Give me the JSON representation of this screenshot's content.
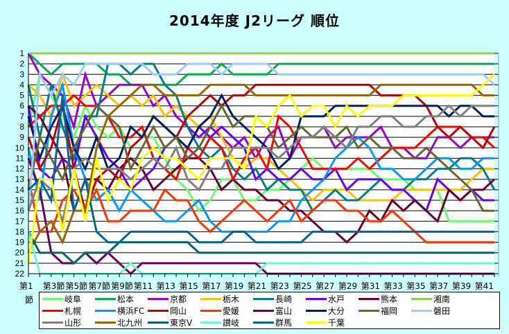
{
  "chart_data": {
    "type": "line",
    "title": "2014年度 J2リーグ 順位",
    "xlabel": "",
    "ylabel": "",
    "ylim": [
      1,
      22
    ],
    "y_inverted": true,
    "y_ticks": [
      1,
      2,
      3,
      4,
      5,
      6,
      7,
      8,
      9,
      10,
      11,
      12,
      13,
      14,
      15,
      16,
      17,
      18,
      19,
      20,
      21,
      22
    ],
    "x_tick_labels": [
      "第1節",
      "第3節",
      "第5節",
      "第7節",
      "第9節",
      "第11",
      "第13",
      "第15",
      "第17",
      "第19",
      "第21",
      "第23",
      "第25",
      "第27",
      "第29",
      "第31",
      "第33",
      "第35",
      "第37",
      "第39",
      "第41"
    ],
    "x_tick_label_bottom": [
      "節",
      "節",
      "節"
    ],
    "x": [
      1,
      2,
      3,
      4,
      5,
      6,
      7,
      8,
      9,
      10,
      11,
      12,
      13,
      14,
      15,
      16,
      17,
      18,
      19,
      20,
      21,
      22,
      23,
      24,
      25,
      26,
      27,
      28,
      29,
      30,
      31,
      32,
      33,
      34,
      35,
      36,
      37,
      38,
      39,
      40,
      41,
      42
    ],
    "grid": true,
    "legend_position": "bottom",
    "series": [
      {
        "name": "岐阜",
        "color": "#66ff66",
        "values": [
          8,
          3,
          5,
          7,
          9,
          6,
          8,
          9,
          8,
          10,
          9,
          9,
          11,
          13,
          14,
          16,
          15,
          13,
          13,
          15,
          15,
          14,
          14,
          13,
          12,
          11,
          12,
          12,
          12,
          12,
          12,
          13,
          13,
          13,
          14,
          14,
          14,
          17,
          17,
          17,
          17,
          17
        ]
      },
      {
        "name": "松本",
        "color": "#00b050",
        "values": [
          1,
          2,
          3,
          2,
          2,
          2,
          2,
          3,
          3,
          4,
          4,
          4,
          4,
          4,
          3,
          3,
          3,
          2,
          3,
          3,
          3,
          3,
          2,
          2,
          2,
          2,
          2,
          2,
          2,
          2,
          2,
          2,
          2,
          2,
          2,
          2,
          2,
          2,
          2,
          2,
          2,
          2
        ]
      },
      {
        "name": "京都",
        "color": "#9900cc",
        "values": [
          1,
          3,
          4,
          5,
          8,
          3,
          6,
          5,
          4,
          4,
          4,
          6,
          5,
          7,
          8,
          9,
          8,
          9,
          10,
          9,
          11,
          9,
          8,
          11,
          9,
          9,
          8,
          10,
          9,
          9,
          9,
          8,
          10,
          10,
          11,
          11,
          9,
          9,
          10,
          9,
          9,
          9
        ]
      },
      {
        "name": "栃木",
        "color": "#ffc000",
        "values": [
          4,
          5,
          7,
          3,
          6,
          5,
          4,
          5,
          6,
          5,
          6,
          5,
          7,
          6,
          7,
          8,
          7,
          9,
          11,
          12,
          11,
          11,
          12,
          13,
          14,
          15,
          14,
          14,
          14,
          15,
          15,
          15,
          15,
          14,
          14,
          14,
          14,
          14,
          14,
          13,
          12,
          12
        ]
      },
      {
        "name": "長崎",
        "color": "#008080",
        "values": [
          4,
          9,
          4,
          8,
          11,
          7,
          7,
          2,
          2,
          3,
          2,
          2,
          4,
          5,
          8,
          10,
          11,
          10,
          12,
          13,
          12,
          14,
          13,
          14,
          14,
          16,
          15,
          14,
          15,
          15,
          14,
          13,
          14,
          14,
          13,
          13,
          12,
          12,
          11,
          11,
          12,
          14
        ]
      },
      {
        "name": "水戸",
        "color": "#6600ff",
        "values": [
          6,
          12,
          13,
          11,
          12,
          7,
          9,
          11,
          12,
          14,
          13,
          12,
          10,
          9,
          10,
          8,
          9,
          8,
          9,
          10,
          13,
          12,
          13,
          13,
          12,
          13,
          13,
          12,
          14,
          13,
          13,
          13,
          14,
          14,
          15,
          16,
          13,
          14,
          15,
          14,
          15,
          15
        ]
      },
      {
        "name": "熊本",
        "color": "#660033",
        "values": [
          6,
          7,
          9,
          11,
          16,
          13,
          13,
          14,
          12,
          11,
          12,
          14,
          13,
          12,
          11,
          11,
          12,
          14,
          13,
          14,
          14,
          15,
          15,
          16,
          16,
          17,
          18,
          18,
          19,
          18,
          16,
          17,
          15,
          16,
          15,
          16,
          17,
          14,
          15,
          14,
          14,
          13
        ]
      },
      {
        "name": "湘南",
        "color": "#92d050",
        "values": [
          1,
          1,
          1,
          1,
          1,
          1,
          1,
          1,
          1,
          1,
          1,
          1,
          1,
          1,
          1,
          1,
          1,
          1,
          1,
          1,
          1,
          1,
          1,
          1,
          1,
          1,
          1,
          1,
          1,
          1,
          1,
          1,
          1,
          1,
          1,
          1,
          1,
          1,
          1,
          1,
          1,
          1
        ]
      },
      {
        "name": "札幌",
        "color": "#ff0000",
        "values": [
          8,
          7,
          6,
          6,
          5,
          6,
          6,
          7,
          9,
          9,
          8,
          11,
          12,
          13,
          10,
          11,
          9,
          10,
          13,
          11,
          10,
          12,
          7,
          8,
          10,
          12,
          12,
          12,
          12,
          11,
          12,
          11,
          10,
          10,
          10,
          9,
          8,
          8,
          8,
          9,
          9,
          10
        ]
      },
      {
        "name": "横浜FC",
        "color": "#0099ff",
        "values": [
          10,
          15,
          7,
          4,
          10,
          13,
          15,
          14,
          16,
          14,
          15,
          16,
          17,
          17,
          16,
          15,
          17,
          18,
          18,
          18,
          18,
          18,
          17,
          17,
          15,
          14,
          13,
          11,
          10,
          9,
          10,
          12,
          12,
          13,
          13,
          12,
          11,
          11,
          12,
          12,
          11,
          11
        ]
      },
      {
        "name": "岡山",
        "color": "#c00000",
        "values": [
          9,
          12,
          10,
          6,
          12,
          16,
          13,
          12,
          13,
          10,
          9,
          7,
          8,
          9,
          7,
          6,
          5,
          6,
          5,
          5,
          4,
          4,
          4,
          4,
          4,
          4,
          4,
          4,
          4,
          4,
          4,
          5,
          5,
          5,
          5,
          6,
          8,
          9,
          8,
          9,
          10,
          8
        ]
      },
      {
        "name": "愛媛",
        "color": "#ff3300",
        "values": [
          13,
          18,
          18,
          15,
          14,
          16,
          14,
          17,
          17,
          16,
          16,
          16,
          14,
          15,
          15,
          17,
          18,
          17,
          16,
          15,
          16,
          17,
          16,
          15,
          17,
          16,
          15,
          15,
          16,
          16,
          17,
          17,
          16,
          17,
          18,
          19,
          19,
          19,
          19,
          19,
          19,
          19
        ]
      },
      {
        "name": "富山",
        "color": "#660066",
        "values": [
          11,
          14,
          20,
          21,
          21,
          20,
          21,
          20,
          21,
          22,
          21,
          21,
          21,
          21,
          21,
          21,
          21,
          21,
          21,
          21,
          21,
          22,
          22,
          22,
          22,
          22,
          22,
          22,
          22,
          22,
          22,
          22,
          22,
          22,
          22,
          22,
          22,
          22,
          22,
          22,
          22,
          22
        ]
      },
      {
        "name": "大分",
        "color": "#002060",
        "values": [
          7,
          11,
          8,
          6,
          10,
          12,
          9,
          12,
          11,
          8,
          9,
          7,
          8,
          9,
          10,
          8,
          7,
          5,
          7,
          8,
          9,
          10,
          12,
          11,
          7,
          7,
          7,
          6,
          6,
          6,
          6,
          6,
          6,
          6,
          6,
          6,
          6,
          7,
          6,
          6,
          7,
          7
        ]
      },
      {
        "name": "福岡",
        "color": "#666633",
        "values": [
          14,
          9,
          11,
          13,
          10,
          8,
          6,
          7,
          8,
          12,
          10,
          8,
          10,
          9,
          11,
          10,
          8,
          6,
          8,
          7,
          7,
          8,
          10,
          9,
          8,
          9,
          9,
          9,
          8,
          10,
          9,
          10,
          10,
          11,
          11,
          10,
          11,
          12,
          13,
          14,
          16,
          16
        ]
      },
      {
        "name": "磐田",
        "color": "#99ccff",
        "values": [
          16,
          3,
          5,
          3,
          4,
          2,
          2,
          2,
          2,
          2,
          2,
          3,
          3,
          3,
          2,
          2,
          2,
          3,
          2,
          2,
          2,
          2,
          3,
          3,
          3,
          3,
          3,
          3,
          3,
          3,
          3,
          3,
          3,
          3,
          3,
          3,
          3,
          3,
          3,
          3,
          3,
          4
        ]
      },
      {
        "name": "山形",
        "color": "#808080",
        "values": [
          16,
          13,
          14,
          17,
          12,
          11,
          12,
          12,
          12,
          13,
          12,
          11,
          12,
          10,
          13,
          14,
          12,
          12,
          10,
          10,
          10,
          10,
          11,
          10,
          9,
          9,
          8,
          9,
          10,
          8,
          8,
          7,
          7,
          8,
          8,
          7,
          7,
          6,
          7,
          6,
          6,
          6
        ]
      },
      {
        "name": "北九州",
        "color": "#996600",
        "values": [
          20,
          18,
          17,
          19,
          16,
          16,
          10,
          7,
          6,
          5,
          4,
          4,
          5,
          5,
          5,
          5,
          4,
          4,
          4,
          4,
          5,
          5,
          5,
          5,
          5,
          5,
          5,
          5,
          5,
          5,
          5,
          4,
          4,
          4,
          4,
          4,
          4,
          4,
          4,
          4,
          5,
          5
        ]
      },
      {
        "name": "東京V",
        "color": "#006666",
        "values": [
          18,
          20,
          20,
          20,
          21,
          20,
          20,
          20,
          19,
          19,
          19,
          19,
          19,
          19,
          19,
          20,
          20,
          20,
          20,
          20,
          20,
          20,
          20,
          20,
          20,
          20,
          20,
          20,
          20,
          20,
          20,
          20,
          20,
          20,
          20,
          20,
          20,
          20,
          20,
          20,
          20,
          20
        ]
      },
      {
        "name": "讃岐",
        "color": "#66ffcc",
        "values": [
          18,
          22,
          22,
          22,
          22,
          22,
          22,
          22,
          22,
          21,
          22,
          22,
          22,
          22,
          22,
          22,
          22,
          22,
          22,
          22,
          22,
          21,
          21,
          21,
          21,
          21,
          21,
          21,
          21,
          21,
          21,
          21,
          21,
          21,
          21,
          21,
          21,
          21,
          21,
          21,
          21,
          21
        ]
      },
      {
        "name": "群馬",
        "color": "#006699",
        "values": [
          14,
          13,
          15,
          5,
          16,
          13,
          18,
          19,
          19,
          18,
          18,
          18,
          18,
          18,
          18,
          19,
          19,
          19,
          18,
          18,
          19,
          19,
          19,
          19,
          19,
          18,
          18,
          18,
          18,
          18,
          18,
          18,
          18,
          18,
          18,
          18,
          18,
          18,
          18,
          18,
          18,
          18
        ]
      },
      {
        "name": "千葉",
        "color": "#ffff00",
        "values": [
          21,
          13,
          13,
          18,
          12,
          17,
          11,
          15,
          13,
          14,
          11,
          10,
          11,
          11,
          12,
          13,
          11,
          11,
          11,
          12,
          7,
          8,
          6,
          5,
          7,
          6,
          6,
          8,
          6,
          7,
          6,
          6,
          6,
          5,
          5,
          5,
          5,
          5,
          5,
          5,
          4,
          3
        ]
      }
    ]
  },
  "legend": {
    "rows": [
      [
        "岐阜",
        "松本",
        "京都",
        "栃木",
        "長崎",
        "水戸",
        "熊本",
        "湘南"
      ],
      [
        "札幌",
        "横浜FC",
        "岡山",
        "愛媛",
        "富山",
        "大分",
        "福岡",
        "磐田"
      ],
      [
        "山形",
        "北九州",
        "東京V",
        "讃岐",
        "群馬",
        "千葉"
      ]
    ]
  }
}
